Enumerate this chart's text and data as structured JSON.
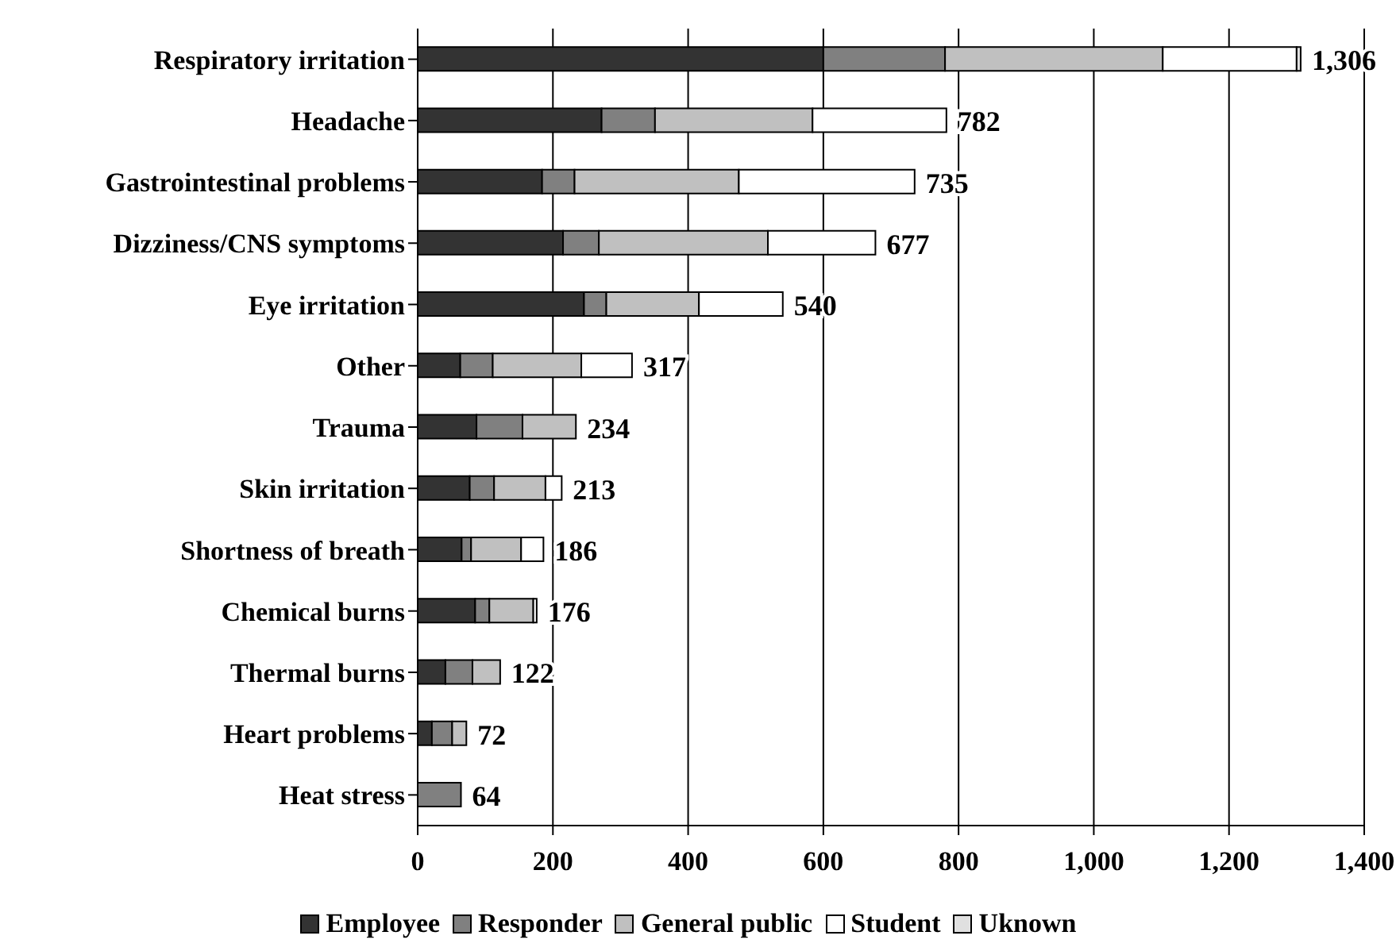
{
  "chart_data": {
    "type": "bar",
    "orientation": "horizontal",
    "stacked": true,
    "categories": [
      "Respiratory irritation",
      "Headache",
      "Gastrointestinal problems",
      "Dizziness/CNS symptoms",
      "Eye irritation",
      "Other",
      "Trauma",
      "Skin irritation",
      "Shortness of breath",
      "Chemical burns",
      "Thermal burns",
      "Heart problems",
      "Heat stress"
    ],
    "series": [
      {
        "name": "Employee",
        "color": "#333333",
        "values": [
          600,
          272,
          184,
          215,
          246,
          63,
          87,
          77,
          65,
          85,
          41,
          21,
          null
        ]
      },
      {
        "name": "Responder",
        "color": "#808080",
        "values": [
          180,
          79,
          48,
          53,
          33,
          48,
          68,
          36,
          14,
          21,
          40,
          30,
          64
        ]
      },
      {
        "name": "General public",
        "color": "#c0c0c0",
        "values": [
          322,
          233,
          243,
          250,
          137,
          131,
          79,
          76,
          74,
          65,
          41,
          21,
          null
        ]
      },
      {
        "name": "Student",
        "color": "#ffffff",
        "values": [
          198,
          198,
          260,
          159,
          124,
          75,
          null,
          24,
          33,
          5,
          null,
          null,
          null
        ]
      },
      {
        "name": "Uknown",
        "color": "#e0e0e0",
        "values": [
          6,
          null,
          null,
          null,
          null,
          null,
          null,
          null,
          null,
          null,
          null,
          null,
          null
        ]
      }
    ],
    "totals": [
      "1,306",
      "782",
      "735",
      "677",
      "540",
      "317",
      "234",
      "213",
      "186",
      "176",
      "122",
      "72",
      "64"
    ],
    "xlim": [
      0,
      1400
    ],
    "xticks": [
      0,
      200,
      400,
      600,
      800,
      {
        "value": 1000,
        "label": "1,000"
      },
      {
        "value": 1200,
        "label": "1,200"
      },
      {
        "value": 1400,
        "label": "1,400"
      }
    ],
    "grid": "x",
    "legend": "bottom"
  }
}
